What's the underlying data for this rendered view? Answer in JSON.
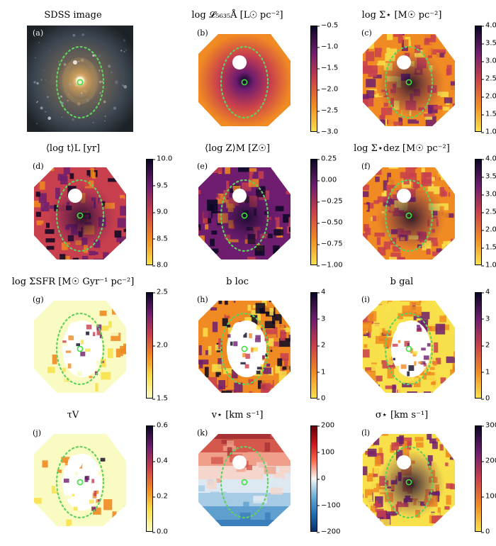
{
  "figure": {
    "panels": [
      {
        "id": "a",
        "label": "(a)",
        "title": "SDSS image",
        "map": "sdss",
        "colorbar": null
      },
      {
        "id": "b",
        "label": "(b)",
        "title": "log 𝓛₅₆₃₅Å [L☉ pc⁻²]",
        "map": "smooth",
        "colors": [
          "#f8e04a",
          "#f08a22",
          "#c83f4d",
          "#6e1d6f",
          "#0b0724"
        ],
        "colorbar": {
          "ticks": [
            "−0.5",
            "−1.0",
            "−1.5",
            "−2.0",
            "−2.5",
            "−3.0"
          ]
        }
      },
      {
        "id": "c",
        "label": "(c)",
        "title": "log Σ⋆ [M☉ pc⁻²]",
        "map": "mosaic",
        "colors": [
          "#f8e04a",
          "#f08a22",
          "#c83f4d",
          "#6e1d6f",
          "#0b0724"
        ],
        "colorbar": {
          "ticks": [
            "4.0",
            "3.5",
            "3.0",
            "2.5",
            "2.0",
            "1.5",
            "1.0"
          ]
        }
      },
      {
        "id": "d",
        "label": "(d)",
        "title": "⟨log t⟩L [yr]",
        "map": "voronoi",
        "colors": [
          "#f8e04a",
          "#f08a22",
          "#c83f4d",
          "#6e1d6f",
          "#0b0724"
        ],
        "colorbar": {
          "ticks": [
            "10.0",
            "9.5",
            "9.0",
            "8.5",
            "8.0"
          ]
        }
      },
      {
        "id": "e",
        "label": "(e)",
        "title": "⟨log Z⟩M [Z☉]",
        "map": "dark",
        "colors": [
          "#f8e04a",
          "#f08a22",
          "#c83f4d",
          "#6e1d6f",
          "#0b0724"
        ],
        "colorbar": {
          "ticks": [
            "0.25",
            "0.00",
            "−0.25",
            "−0.50",
            "−0.75",
            "−1.00"
          ]
        }
      },
      {
        "id": "f",
        "label": "(f)",
        "title": "log Σ⋆dez [M☉ pc⁻²]",
        "map": "mosaic",
        "colors": [
          "#f8e04a",
          "#f08a22",
          "#c83f4d",
          "#6e1d6f",
          "#0b0724"
        ],
        "colorbar": {
          "ticks": [
            "4.0",
            "3.5",
            "3.0",
            "2.5",
            "2.0",
            "1.5",
            "1.0"
          ]
        }
      },
      {
        "id": "g",
        "label": "(g)",
        "title": "log ΣSFR [M☉ Gyr⁻¹ pc⁻²]",
        "map": "pale",
        "colors": [
          "#fafbc2",
          "#f8e04a",
          "#f08a22",
          "#c83f4d",
          "#6e1d6f",
          "#0b0724"
        ],
        "colorbar": {
          "ticks": [
            "2.5",
            "2.0",
            "1.5"
          ]
        }
      },
      {
        "id": "h",
        "label": "(h)",
        "title": "b loc",
        "map": "ring",
        "colors": [
          "#f8e04a",
          "#f08a22",
          "#c83f4d",
          "#6e1d6f",
          "#0b0724"
        ],
        "colorbar": {
          "ticks": [
            "4",
            "3",
            "2",
            "1",
            "0"
          ]
        }
      },
      {
        "id": "i",
        "label": "(i)",
        "title": "b gal",
        "map": "ring-light",
        "colors": [
          "#f8e04a",
          "#f08a22",
          "#c83f4d",
          "#6e1d6f",
          "#0b0724"
        ],
        "colorbar": {
          "ticks": [
            "4",
            "3",
            "2",
            "1",
            "0"
          ]
        }
      },
      {
        "id": "j",
        "label": "(j)",
        "title": "τV",
        "map": "pale",
        "colors": [
          "#fafbc2",
          "#f8e04a",
          "#f08a22",
          "#c83f4d",
          "#6e1d6f",
          "#0b0724"
        ],
        "colorbar": {
          "ticks": [
            "0.6",
            "0.4",
            "0.2",
            "0.0"
          ]
        }
      },
      {
        "id": "k",
        "label": "(k)",
        "title": "v⋆ [km s⁻¹]",
        "map": "velocity",
        "colors": [
          "#08306b",
          "#2171b5",
          "#6baed6",
          "#f7f7f7",
          "#fb6a4a",
          "#cb181d",
          "#67000d"
        ],
        "colorbar": {
          "ticks": [
            "200",
            "100",
            "0",
            "−100",
            "−200"
          ]
        }
      },
      {
        "id": "l",
        "label": "(l)",
        "title": "σ⋆ [km s⁻¹]",
        "map": "mosaic-light",
        "colors": [
          "#f8e04a",
          "#f08a22",
          "#c83f4d",
          "#6e1d6f",
          "#0b0724"
        ],
        "colorbar": {
          "ticks": [
            "300",
            "200",
            "100",
            "0"
          ]
        }
      }
    ]
  }
}
